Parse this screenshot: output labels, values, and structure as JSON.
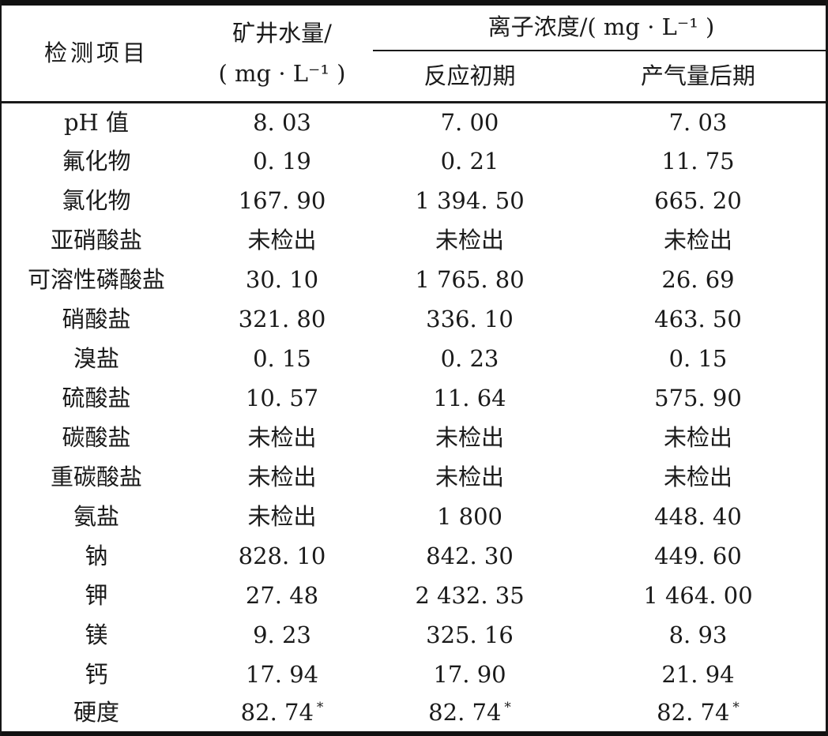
{
  "colors": {
    "background": "#ffffff",
    "text": "#1a1a1a",
    "rule": "#111111"
  },
  "table": {
    "header": {
      "item_label": "检测项目",
      "mine_water_line1": "矿井水量/",
      "mine_water_line2": "( mg · L⁻¹ )",
      "ion_group_label": "离子浓度/( mg · L⁻¹ )",
      "sub_initial": "反应初期",
      "sub_late": "产气量后期"
    },
    "rows": [
      {
        "item": "pH 值",
        "mine_water": "8. 03",
        "reaction_initial": "7. 00",
        "gas_late": "7. 03"
      },
      {
        "item": "氟化物",
        "mine_water": "0. 19",
        "reaction_initial": "0. 21",
        "gas_late": "11. 75"
      },
      {
        "item": "氯化物",
        "mine_water": "167. 90",
        "reaction_initial": "1 394. 50",
        "gas_late": "665. 20"
      },
      {
        "item": "亚硝酸盐",
        "mine_water": "未检出",
        "reaction_initial": "未检出",
        "gas_late": "未检出"
      },
      {
        "item": "可溶性磷酸盐",
        "mine_water": "30. 10",
        "reaction_initial": "1 765. 80",
        "gas_late": "26. 69"
      },
      {
        "item": "硝酸盐",
        "mine_water": "321. 80",
        "reaction_initial": "336. 10",
        "gas_late": "463. 50"
      },
      {
        "item": "溴盐",
        "mine_water": "0. 15",
        "reaction_initial": "0. 23",
        "gas_late": "0. 15"
      },
      {
        "item": "硫酸盐",
        "mine_water": "10. 57",
        "reaction_initial": "11. 64",
        "gas_late": "575. 90"
      },
      {
        "item": "碳酸盐",
        "mine_water": "未检出",
        "reaction_initial": "未检出",
        "gas_late": "未检出"
      },
      {
        "item": "重碳酸盐",
        "mine_water": "未检出",
        "reaction_initial": "未检出",
        "gas_late": "未检出"
      },
      {
        "item": "氨盐",
        "mine_water": "未检出",
        "reaction_initial": "1 800",
        "gas_late": "448. 40"
      },
      {
        "item": "钠",
        "mine_water": "828. 10",
        "reaction_initial": "842. 30",
        "gas_late": "449. 60"
      },
      {
        "item": "钾",
        "mine_water": "27. 48",
        "reaction_initial": "2 432. 35",
        "gas_late": "1 464. 00"
      },
      {
        "item": "镁",
        "mine_water": "9. 23",
        "reaction_initial": "325. 16",
        "gas_late": "8. 93"
      },
      {
        "item": "钙",
        "mine_water": "17. 94",
        "reaction_initial": "17. 90",
        "gas_late": "21. 94"
      },
      {
        "item": "硬度",
        "mine_water": "82. 74*",
        "reaction_initial": "82. 74*",
        "gas_late": "82. 74*"
      }
    ]
  }
}
